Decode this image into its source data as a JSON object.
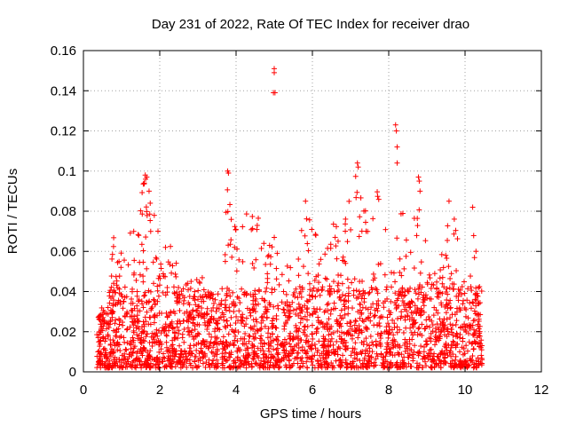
{
  "chart_data": {
    "type": "scatter",
    "title": "Day 231 of 2022, Rate Of TEC Index for receiver drao",
    "xlabel": "GPS time / hours",
    "ylabel": "ROTI / TECUs",
    "xlim": [
      0,
      12
    ],
    "ylim": [
      0,
      0.16
    ],
    "xticks": [
      0,
      2,
      4,
      6,
      8,
      10,
      12
    ],
    "yticks": [
      0,
      0.02,
      0.04,
      0.06,
      0.08,
      0.1,
      0.12,
      0.14,
      0.16
    ],
    "xtick_labels": [
      "0",
      "2",
      "4",
      "6",
      "8",
      "10",
      "12"
    ],
    "ytick_labels": [
      "0",
      "0.02",
      "0.04",
      "0.06",
      "0.08",
      "0.1",
      "0.12",
      "0.14",
      "0.16"
    ],
    "grid": true,
    "marker": "+",
    "color": "#ff0000",
    "series": [
      {
        "name": "ROTI",
        "x_range": [
          0.35,
          10.45
        ],
        "bulk_range": [
          0.002,
          0.04
        ],
        "envelope": [
          [
            0.4,
            0.03
          ],
          [
            0.6,
            0.03
          ],
          [
            0.8,
            0.07
          ],
          [
            1.0,
            0.065
          ],
          [
            1.2,
            0.07
          ],
          [
            1.4,
            0.07
          ],
          [
            1.6,
            0.098
          ],
          [
            1.8,
            0.09
          ],
          [
            2.0,
            0.065
          ],
          [
            2.2,
            0.07
          ],
          [
            2.4,
            0.06
          ],
          [
            2.6,
            0.05
          ],
          [
            2.8,
            0.045
          ],
          [
            3.0,
            0.05
          ],
          [
            3.2,
            0.045
          ],
          [
            3.4,
            0.04
          ],
          [
            3.6,
            0.05
          ],
          [
            3.8,
            0.1
          ],
          [
            4.0,
            0.075
          ],
          [
            4.2,
            0.08
          ],
          [
            4.4,
            0.078
          ],
          [
            4.6,
            0.083
          ],
          [
            4.8,
            0.065
          ],
          [
            5.0,
            0.07
          ],
          [
            5.2,
            0.06
          ],
          [
            5.4,
            0.055
          ],
          [
            5.6,
            0.066
          ],
          [
            5.8,
            0.082
          ],
          [
            6.0,
            0.083
          ],
          [
            6.2,
            0.06
          ],
          [
            6.4,
            0.062
          ],
          [
            6.6,
            0.08
          ],
          [
            6.8,
            0.07
          ],
          [
            7.0,
            0.092
          ],
          [
            7.2,
            0.103
          ],
          [
            7.4,
            0.08
          ],
          [
            7.6,
            0.09
          ],
          [
            7.8,
            0.093
          ],
          [
            8.0,
            0.06
          ],
          [
            8.2,
            0.078
          ],
          [
            8.4,
            0.08
          ],
          [
            8.6,
            0.07
          ],
          [
            8.8,
            0.096
          ],
          [
            9.0,
            0.06
          ],
          [
            9.2,
            0.05
          ],
          [
            9.4,
            0.06
          ],
          [
            9.6,
            0.085
          ],
          [
            9.8,
            0.07
          ],
          [
            10.0,
            0.06
          ],
          [
            10.2,
            0.082
          ],
          [
            10.4,
            0.04
          ]
        ],
        "outliers": [
          [
            5.0,
            0.151
          ],
          [
            5.0,
            0.149
          ],
          [
            4.98,
            0.139
          ],
          [
            5.02,
            0.139
          ],
          [
            8.18,
            0.123
          ],
          [
            8.2,
            0.12
          ],
          [
            8.22,
            0.112
          ],
          [
            8.22,
            0.104
          ],
          [
            3.78,
            0.1
          ],
          [
            3.8,
            0.099
          ],
          [
            7.18,
            0.104
          ],
          [
            7.2,
            0.102
          ],
          [
            1.62,
            0.098
          ],
          [
            1.66,
            0.097
          ],
          [
            8.78,
            0.097
          ],
          [
            8.8,
            0.095
          ],
          [
            8.82,
            0.09
          ],
          [
            9.58,
            0.085
          ],
          [
            10.2,
            0.082
          ],
          [
            5.82,
            0.085
          ],
          [
            1.75,
            0.084
          ],
          [
            1.72,
            0.09
          ]
        ]
      }
    ]
  }
}
